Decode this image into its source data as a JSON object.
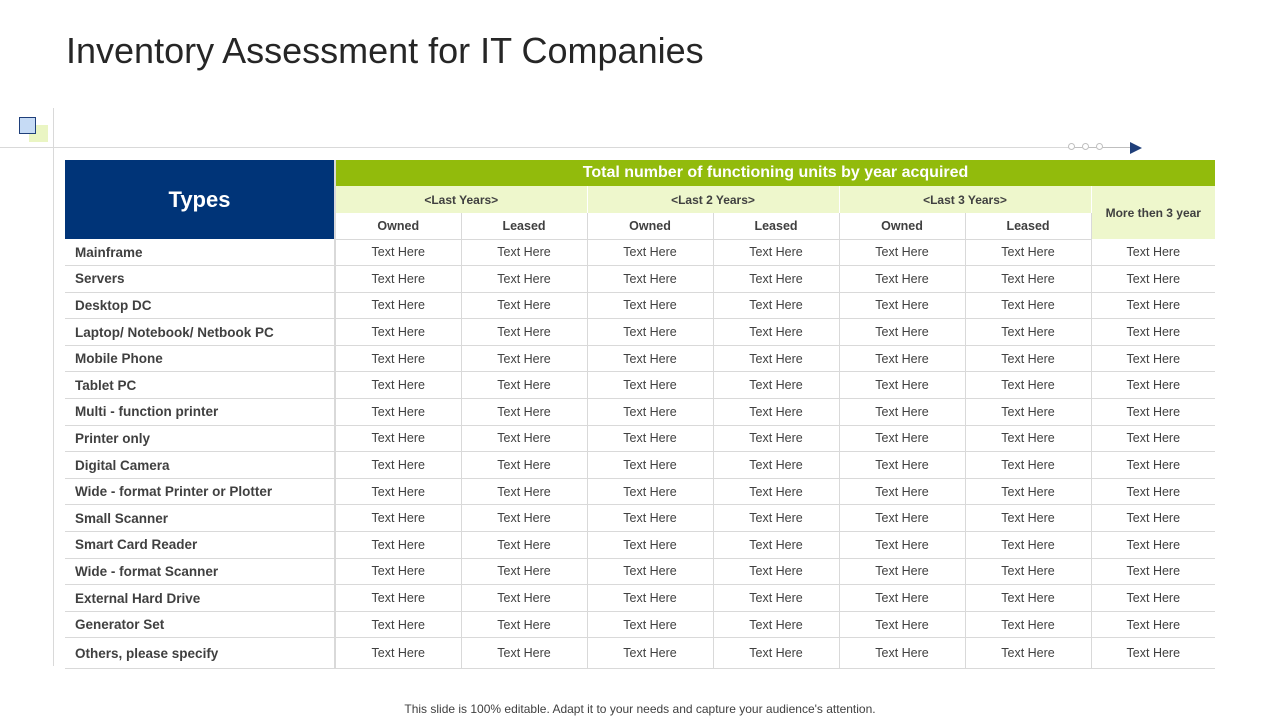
{
  "title": "Inventory Assessment for IT Companies",
  "colors": {
    "types_header_bg": "#003478",
    "total_header_bg": "#92bb0c",
    "subheader_bg": "#eef7cc"
  },
  "table": {
    "types_header": "Types",
    "total_header": "Total number of functioning units by year acquired",
    "year_groups": [
      "<Last Years>",
      "<Last 2 Years>",
      "<Last 3 Years>"
    ],
    "more_header": "More then 3 year",
    "sub_headers": [
      "Owned",
      "Leased",
      "Owned",
      "Leased",
      "Owned",
      "Leased"
    ],
    "rows": [
      {
        "type": "Mainframe",
        "cells": [
          "Text Here",
          "Text Here",
          "Text Here",
          "Text Here",
          "Text Here",
          "Text Here",
          "Text Here"
        ]
      },
      {
        "type": "Servers",
        "cells": [
          "Text Here",
          "Text Here",
          "Text Here",
          "Text Here",
          "Text Here",
          "Text Here",
          "Text Here"
        ]
      },
      {
        "type": "Desktop DC",
        "cells": [
          "Text Here",
          "Text Here",
          "Text Here",
          "Text Here",
          "Text Here",
          "Text Here",
          "Text Here"
        ]
      },
      {
        "type": "Laptop/ Notebook/ Netbook PC",
        "cells": [
          "Text Here",
          "Text Here",
          "Text Here",
          "Text Here",
          "Text Here",
          "Text Here",
          "Text Here"
        ]
      },
      {
        "type": "Mobile Phone",
        "cells": [
          "Text Here",
          "Text Here",
          "Text Here",
          "Text Here",
          "Text Here",
          "Text Here",
          "Text Here"
        ]
      },
      {
        "type": "Tablet PC",
        "cells": [
          "Text Here",
          "Text Here",
          "Text Here",
          "Text Here",
          "Text Here",
          "Text Here",
          "Text Here"
        ]
      },
      {
        "type": "Multi - function printer",
        "cells": [
          "Text Here",
          "Text Here",
          "Text Here",
          "Text Here",
          "Text Here",
          "Text Here",
          "Text Here"
        ]
      },
      {
        "type": "Printer only",
        "cells": [
          "Text Here",
          "Text Here",
          "Text Here",
          "Text Here",
          "Text Here",
          "Text Here",
          "Text Here"
        ]
      },
      {
        "type": "Digital Camera",
        "cells": [
          "Text Here",
          "Text Here",
          "Text Here",
          "Text Here",
          "Text Here",
          "Text Here",
          "Text Here"
        ]
      },
      {
        "type": "Wide - format Printer or Plotter",
        "cells": [
          "Text Here",
          "Text Here",
          "Text Here",
          "Text Here",
          "Text Here",
          "Text Here",
          "Text Here"
        ]
      },
      {
        "type": "Small Scanner",
        "cells": [
          "Text Here",
          "Text Here",
          "Text Here",
          "Text Here",
          "Text Here",
          "Text Here",
          "Text Here"
        ]
      },
      {
        "type": "Smart Card Reader",
        "cells": [
          "Text Here",
          "Text Here",
          "Text Here",
          "Text Here",
          "Text Here",
          "Text Here",
          "Text Here"
        ]
      },
      {
        "type": "Wide - format Scanner",
        "cells": [
          "Text Here",
          "Text Here",
          "Text Here",
          "Text Here",
          "Text Here",
          "Text Here",
          "Text Here"
        ]
      },
      {
        "type": "External Hard Drive",
        "cells": [
          "Text Here",
          "Text Here",
          "Text Here",
          "Text Here",
          "Text Here",
          "Text Here",
          "Text Here"
        ]
      },
      {
        "type": "Generator Set",
        "cells": [
          "Text Here",
          "Text Here",
          "Text Here",
          "Text Here",
          "Text Here",
          "Text Here",
          "Text Here"
        ]
      },
      {
        "type": "Others, please specify",
        "cells": [
          "Text Here",
          "Text Here",
          "Text Here",
          "Text Here",
          "Text Here",
          "Text Here",
          "Text Here"
        ]
      }
    ]
  },
  "footer": "This slide is 100% editable. Adapt it to your needs and capture your audience's attention."
}
